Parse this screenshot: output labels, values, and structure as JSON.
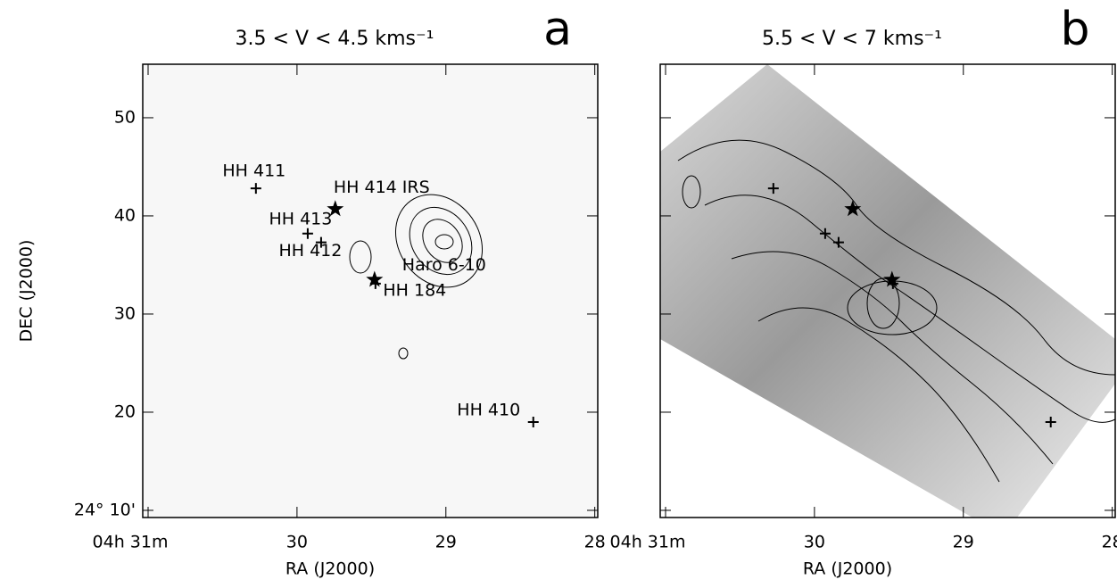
{
  "chart_data": [
    {
      "type": "map",
      "title": "3.5 < V < 4.5 kms⁻¹",
      "panel": "a",
      "xlabel": "RA (J2000)",
      "ylabel": "DEC (J2000)",
      "xlim": [
        31.036,
        27.98
      ],
      "ylim": [
        9.27,
        55.45
      ],
      "xticks": [
        {
          "value": 31,
          "label": "04h 31m"
        },
        30,
        29,
        28
      ],
      "yticks": [
        {
          "value": 10,
          "label": "24° 10'"
        },
        20,
        30,
        40,
        50
      ],
      "objects": [
        {
          "name": "HH 411",
          "marker": "plus",
          "x": 30.276,
          "y": 42.8
        },
        {
          "name": "HH 413",
          "marker": "plus",
          "x": 29.928,
          "y": 38.2
        },
        {
          "name": "HH 412",
          "marker": "plus",
          "x": 29.838,
          "y": 37.3
        },
        {
          "name": "HH 414 IRS",
          "marker": "star",
          "x": 29.743,
          "y": 40.7
        },
        {
          "name": "Haro 6-10",
          "marker": "star",
          "x": 29.479,
          "y": 33.5
        },
        {
          "name": "HH 184",
          "marker": "plus",
          "x": 29.473,
          "y": 33.1
        },
        {
          "name": "HH 410",
          "marker": "plus",
          "x": 28.413,
          "y": 19.0
        }
      ]
    },
    {
      "type": "map",
      "title": "5.5 < V < 7 kms⁻¹",
      "panel": "b",
      "xlabel": "RA (J2000)",
      "xlim": [
        31.036,
        27.98
      ],
      "ylim": [
        9.27,
        55.45
      ],
      "xticks": [
        {
          "value": 31,
          "label": "04h 31m"
        },
        30,
        29,
        28
      ],
      "yticks": [
        10,
        20,
        30,
        40,
        50
      ],
      "objects": [
        {
          "marker": "plus",
          "x": 30.276,
          "y": 42.8
        },
        {
          "marker": "plus",
          "x": 29.928,
          "y": 38.2
        },
        {
          "marker": "plus",
          "x": 29.838,
          "y": 37.3
        },
        {
          "marker": "star",
          "x": 29.743,
          "y": 40.7
        },
        {
          "marker": "star",
          "x": 29.479,
          "y": 33.5
        },
        {
          "marker": "plus",
          "x": 29.473,
          "y": 33.1
        },
        {
          "marker": "plus",
          "x": 28.413,
          "y": 19.0
        }
      ]
    }
  ]
}
